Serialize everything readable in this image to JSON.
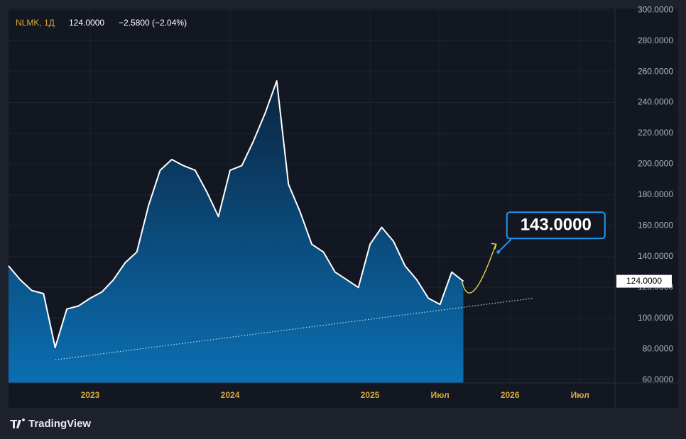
{
  "header": {
    "symbol": "NLMK, 1Д",
    "price": "124.0000",
    "change": "−2.5800 (−2.04%)"
  },
  "chart_data": {
    "type": "area",
    "color": "#ffffff",
    "x": [
      "2022-06",
      "2022-07",
      "2022-08",
      "2022-09",
      "2022-10",
      "2022-11",
      "2022-12",
      "2023-01",
      "2023-02",
      "2023-03",
      "2023-04",
      "2023-05",
      "2023-06",
      "2023-07",
      "2023-08",
      "2023-09",
      "2023-10",
      "2023-11",
      "2023-12",
      "2024-01",
      "2024-02",
      "2024-03",
      "2024-04",
      "2024-05",
      "2024-06",
      "2024-07",
      "2024-08",
      "2024-09",
      "2024-10",
      "2024-11",
      "2024-12",
      "2025-01",
      "2025-02",
      "2025-03",
      "2025-04",
      "2025-05",
      "2025-06",
      "2025-07",
      "2025-08",
      "2025-09"
    ],
    "values": [
      134,
      125,
      118,
      116,
      81,
      106,
      108,
      113,
      117,
      125,
      136,
      143,
      173,
      196,
      203,
      199,
      196,
      182,
      166,
      196,
      199,
      215,
      233,
      254,
      187,
      169,
      148,
      143,
      130,
      125,
      120,
      148,
      159,
      150,
      134,
      125,
      113,
      109,
      130,
      124
    ],
    "xlim": [
      "2022-06",
      "2026-10"
    ],
    "xticks": [
      {
        "value": "2023-01",
        "label": "2023"
      },
      {
        "value": "2024-01",
        "label": "2024"
      },
      {
        "value": "2025-01",
        "label": "2025"
      },
      {
        "value": "2025-07",
        "label": "Июл"
      },
      {
        "value": "2026-01",
        "label": "2026"
      },
      {
        "value": "2026-07",
        "label": "Июл"
      }
    ],
    "ylim": [
      58,
      301
    ],
    "yticks": [
      {
        "value": 60,
        "label": "60.0000"
      },
      {
        "value": 80,
        "label": "80.0000"
      },
      {
        "value": 100,
        "label": "100.0000"
      },
      {
        "value": 120,
        "label": "120.0000"
      },
      {
        "value": 140,
        "label": "140.0000"
      },
      {
        "value": 160,
        "label": "160.0000"
      },
      {
        "value": 180,
        "label": "180.0000"
      },
      {
        "value": 200,
        "label": "200.0000"
      },
      {
        "value": 220,
        "label": "220.0000"
      },
      {
        "value": 240,
        "label": "240.0000"
      },
      {
        "value": 260,
        "label": "260.0000"
      },
      {
        "value": 280,
        "label": "280.0000"
      },
      {
        "value": 300,
        "label": "300.0000"
      }
    ],
    "last_price": {
      "value": 124,
      "label": "124.0000"
    },
    "trend_line": {
      "x": [
        "2022-10",
        "2026-03"
      ],
      "values": [
        73,
        113
      ]
    },
    "forecast": {
      "x": [
        "2025-09",
        "2025-12"
      ],
      "values": [
        124,
        143
      ],
      "label": "143.0000"
    },
    "grid": true
  },
  "footer": {
    "brand": "TradingView"
  }
}
